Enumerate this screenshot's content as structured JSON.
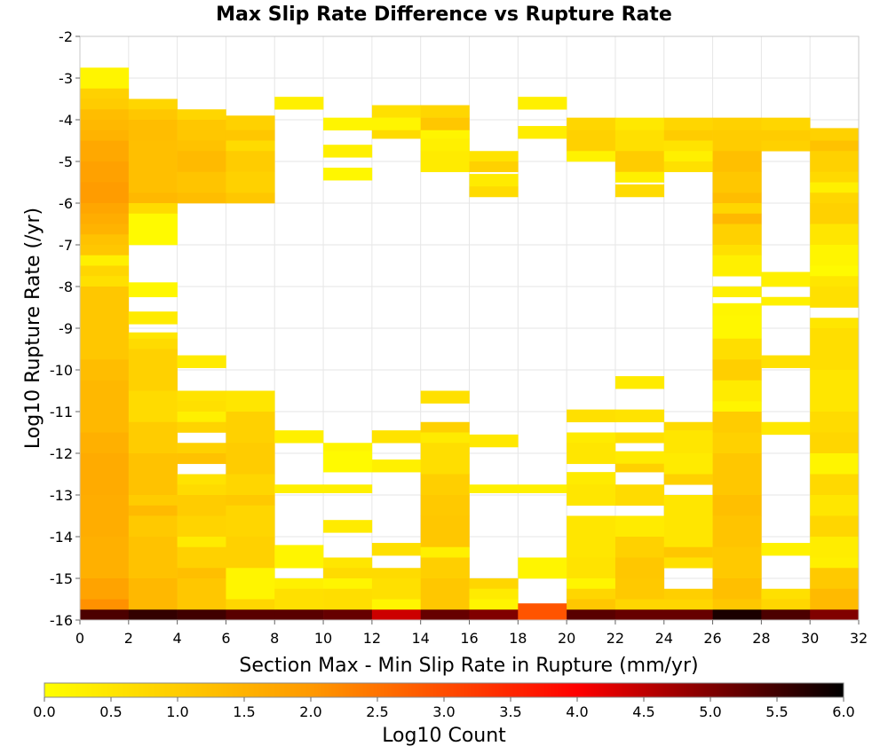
{
  "chart_data": {
    "type": "heatmap",
    "title": "Max Slip Rate Difference vs Rupture Rate",
    "xlabel": "Section Max - Min Slip Rate in Rupture (mm/yr)",
    "ylabel": "Log10 Rupture Rate (/yr)",
    "xlim": [
      0,
      32
    ],
    "ylim": [
      -16,
      -2
    ],
    "x_ticks": [
      "0",
      "2",
      "4",
      "6",
      "8",
      "10",
      "12",
      "14",
      "16",
      "18",
      "20",
      "22",
      "24",
      "26",
      "28",
      "30",
      "32"
    ],
    "y_ticks": [
      "-2",
      "-3",
      "-4",
      "-5",
      "-6",
      "-7",
      "-8",
      "-9",
      "-10",
      "-11",
      "-12",
      "-13",
      "-14",
      "-15",
      "-16"
    ],
    "grid": true,
    "x_bin_width": 2,
    "y_bin_height": 0.25,
    "colorbar": {
      "label": "Log10 Count",
      "range": [
        0,
        6
      ],
      "ticks": [
        "0.0",
        "0.5",
        "1.0",
        "1.5",
        "2.0",
        "2.5",
        "3.0",
        "3.5",
        "4.0",
        "4.5",
        "5.0",
        "5.5",
        "6.0"
      ],
      "colors": [
        "#ffff00",
        "#ff9900",
        "#ff0000",
        "#000000"
      ]
    },
    "cells": [
      [
        0,
        -3.25,
        -2.75,
        0.2
      ],
      [
        0,
        -3.5,
        -3.25,
        0.9
      ],
      [
        0,
        -3.75,
        -3.5,
        1.0
      ],
      [
        0,
        -4.0,
        -3.75,
        1.3
      ],
      [
        0,
        -4.25,
        -4.0,
        1.4
      ],
      [
        0,
        -4.5,
        -4.25,
        1.5
      ],
      [
        0,
        -5.0,
        -4.5,
        1.7
      ],
      [
        0,
        -5.5,
        -5.0,
        1.85
      ],
      [
        0,
        -6.0,
        -5.5,
        1.95
      ],
      [
        0,
        -6.25,
        -6.0,
        1.75
      ],
      [
        0,
        -6.5,
        -6.25,
        1.6
      ],
      [
        0,
        -6.75,
        -6.5,
        1.5
      ],
      [
        0,
        -7.0,
        -6.75,
        1.2
      ],
      [
        0,
        -7.25,
        -7.0,
        1.1
      ],
      [
        0,
        -7.5,
        -7.25,
        0.3
      ],
      [
        0,
        -7.75,
        -7.5,
        0.8
      ],
      [
        0,
        -8.0,
        -7.75,
        0.6
      ],
      [
        0,
        -9.75,
        -8.0,
        1.1
      ],
      [
        0,
        -10.25,
        -9.75,
        1.3
      ],
      [
        0,
        -11.5,
        -10.25,
        1.4
      ],
      [
        0,
        -12.0,
        -11.5,
        1.55
      ],
      [
        0,
        -13.0,
        -12.0,
        1.65
      ],
      [
        0,
        -14.0,
        -13.0,
        1.6
      ],
      [
        0,
        -15.0,
        -14.0,
        1.55
      ],
      [
        0,
        -15.5,
        -15.0,
        1.8
      ],
      [
        0,
        -15.75,
        -15.5,
        2.1
      ],
      [
        0,
        -16.0,
        -15.75,
        5.4
      ],
      [
        2,
        -3.75,
        -3.5,
        0.8
      ],
      [
        2,
        -4.0,
        -3.75,
        1.1
      ],
      [
        2,
        -4.5,
        -4.0,
        1.3
      ],
      [
        2,
        -5.75,
        -4.5,
        1.25
      ],
      [
        2,
        -6.0,
        -5.75,
        1.4
      ],
      [
        2,
        -6.25,
        -6.0,
        0.7
      ],
      [
        2,
        -7.0,
        -6.25,
        0.1
      ],
      [
        2,
        -8.25,
        -7.9,
        0.15
      ],
      [
        2,
        -8.9,
        -8.6,
        0.4
      ],
      [
        2,
        -9.25,
        -9.1,
        0.5
      ],
      [
        2,
        -9.5,
        -9.25,
        0.7
      ],
      [
        2,
        -10.5,
        -9.5,
        0.9
      ],
      [
        2,
        -11.25,
        -10.5,
        0.7
      ],
      [
        2,
        -12.0,
        -11.25,
        1.0
      ],
      [
        2,
        -13.0,
        -12.0,
        1.2
      ],
      [
        2,
        -13.25,
        -13.0,
        1.0
      ],
      [
        2,
        -13.5,
        -13.25,
        1.35
      ],
      [
        2,
        -14.0,
        -13.5,
        1.05
      ],
      [
        2,
        -15.0,
        -14.0,
        1.2
      ],
      [
        2,
        -15.75,
        -15.0,
        1.4
      ],
      [
        2,
        -16.0,
        -15.75,
        5.6
      ],
      [
        4,
        -4.0,
        -3.75,
        0.8
      ],
      [
        4,
        -4.5,
        -4.0,
        1.1
      ],
      [
        4,
        -4.75,
        -4.5,
        1.2
      ],
      [
        4,
        -5.25,
        -4.75,
        1.35
      ],
      [
        4,
        -5.75,
        -5.25,
        1.15
      ],
      [
        4,
        -6.0,
        -5.75,
        1.3
      ],
      [
        4,
        -9.95,
        -9.65,
        0.4
      ],
      [
        4,
        -10.75,
        -10.5,
        0.55
      ],
      [
        4,
        -11.0,
        -10.75,
        0.6
      ],
      [
        4,
        -11.25,
        -11.0,
        0.3
      ],
      [
        4,
        -11.5,
        -11.25,
        0.85
      ],
      [
        4,
        -12.0,
        -11.75,
        0.9
      ],
      [
        4,
        -12.25,
        -12.0,
        1.2
      ],
      [
        4,
        -12.75,
        -12.5,
        0.55
      ],
      [
        4,
        -13.0,
        -12.75,
        0.7
      ],
      [
        4,
        -13.5,
        -13.0,
        1.0
      ],
      [
        4,
        -14.0,
        -13.5,
        0.85
      ],
      [
        4,
        -14.25,
        -14.0,
        0.4
      ],
      [
        4,
        -14.75,
        -14.25,
        0.9
      ],
      [
        4,
        -15.0,
        -14.75,
        1.25
      ],
      [
        4,
        -15.75,
        -15.0,
        1.1
      ],
      [
        4,
        -16.0,
        -15.75,
        5.5
      ],
      [
        6,
        -4.25,
        -3.9,
        0.9
      ],
      [
        6,
        -4.5,
        -4.25,
        1.1
      ],
      [
        6,
        -4.75,
        -4.5,
        0.7
      ],
      [
        6,
        -5.25,
        -4.75,
        1.0
      ],
      [
        6,
        -5.75,
        -5.25,
        0.9
      ],
      [
        6,
        -6.0,
        -5.75,
        1.1
      ],
      [
        6,
        -11.0,
        -10.5,
        0.5
      ],
      [
        6,
        -11.75,
        -11.0,
        0.9
      ],
      [
        6,
        -12.5,
        -11.75,
        1.0
      ],
      [
        6,
        -13.0,
        -12.5,
        0.8
      ],
      [
        6,
        -13.25,
        -13.0,
        1.05
      ],
      [
        6,
        -14.0,
        -13.25,
        0.8
      ],
      [
        6,
        -14.75,
        -14.0,
        0.9
      ],
      [
        6,
        -15.5,
        -14.75,
        0.2
      ],
      [
        6,
        -15.75,
        -15.5,
        0.8
      ],
      [
        6,
        -16.0,
        -15.75,
        5.3
      ],
      [
        8,
        -3.75,
        -3.45,
        0.3
      ],
      [
        8,
        -11.75,
        -11.45,
        0.3
      ],
      [
        8,
        -12.95,
        -12.75,
        0.3
      ],
      [
        8,
        -14.75,
        -14.2,
        0.2
      ],
      [
        8,
        -15.25,
        -15.0,
        0.3
      ],
      [
        8,
        -15.75,
        -15.25,
        0.6
      ],
      [
        8,
        -16.0,
        -15.75,
        5.3
      ],
      [
        10,
        -4.25,
        -3.95,
        0.2
      ],
      [
        10,
        -4.9,
        -4.6,
        0.3
      ],
      [
        10,
        -5.45,
        -5.15,
        0.15
      ],
      [
        10,
        -11.95,
        -11.75,
        0.2
      ],
      [
        10,
        -12.45,
        -11.95,
        0.1
      ],
      [
        10,
        -12.95,
        -12.75,
        0.3
      ],
      [
        10,
        -13.9,
        -13.6,
        0.4
      ],
      [
        10,
        -14.75,
        -14.5,
        0.5
      ],
      [
        10,
        -15.0,
        -14.75,
        0.7
      ],
      [
        10,
        -15.25,
        -15.0,
        0.2
      ],
      [
        10,
        -15.75,
        -15.25,
        0.65
      ],
      [
        10,
        -16.0,
        -15.75,
        5.2
      ],
      [
        12,
        -3.95,
        -3.65,
        0.6
      ],
      [
        12,
        -4.25,
        -3.95,
        0.2
      ],
      [
        12,
        -4.45,
        -4.25,
        0.7
      ],
      [
        12,
        -11.75,
        -11.45,
        0.55
      ],
      [
        12,
        -12.45,
        -12.15,
        0.3
      ],
      [
        12,
        -14.45,
        -14.15,
        0.6
      ],
      [
        12,
        -15.0,
        -14.75,
        0.7
      ],
      [
        12,
        -15.5,
        -15.0,
        0.6
      ],
      [
        12,
        -15.75,
        -15.5,
        0.2
      ],
      [
        12,
        -16.0,
        -15.75,
        4.4
      ],
      [
        14,
        -3.95,
        -3.65,
        0.8
      ],
      [
        14,
        -4.25,
        -3.95,
        1.1
      ],
      [
        14,
        -4.45,
        -4.25,
        0.2
      ],
      [
        14,
        -4.75,
        -4.45,
        0.3
      ],
      [
        14,
        -5.25,
        -4.75,
        0.4
      ],
      [
        14,
        -10.8,
        -10.5,
        0.6
      ],
      [
        14,
        -11.5,
        -11.25,
        0.9
      ],
      [
        14,
        -11.75,
        -11.5,
        0.4
      ],
      [
        14,
        -12.5,
        -11.75,
        0.65
      ],
      [
        14,
        -13.0,
        -12.5,
        0.95
      ],
      [
        14,
        -13.5,
        -13.0,
        1.05
      ],
      [
        14,
        -14.25,
        -13.5,
        1.1
      ],
      [
        14,
        -14.5,
        -14.25,
        0.3
      ],
      [
        14,
        -15.0,
        -14.5,
        0.95
      ],
      [
        14,
        -15.75,
        -15.0,
        1.1
      ],
      [
        14,
        -16.0,
        -15.75,
        5.2
      ],
      [
        16,
        -5.0,
        -4.75,
        0.55
      ],
      [
        16,
        -5.25,
        -5.0,
        0.9
      ],
      [
        16,
        -5.6,
        -5.3,
        0.4
      ],
      [
        16,
        -5.85,
        -5.6,
        0.7
      ],
      [
        16,
        -11.85,
        -11.55,
        0.45
      ],
      [
        16,
        -12.95,
        -12.75,
        0.3
      ],
      [
        16,
        -15.25,
        -15.0,
        0.8
      ],
      [
        16,
        -15.5,
        -15.25,
        0.4
      ],
      [
        16,
        -15.75,
        -15.5,
        0.2
      ],
      [
        16,
        -16.0,
        -15.75,
        5.0
      ],
      [
        18,
        -3.75,
        -3.45,
        0.3
      ],
      [
        18,
        -4.45,
        -4.15,
        0.35
      ],
      [
        18,
        -12.95,
        -12.75,
        0.3
      ],
      [
        18,
        -15.0,
        -14.5,
        0.2
      ],
      [
        18,
        -16.0,
        -15.6,
        2.9
      ],
      [
        20,
        -4.25,
        -3.95,
        0.8
      ],
      [
        20,
        -4.75,
        -4.25,
        0.9
      ],
      [
        20,
        -5.0,
        -4.75,
        0.25
      ],
      [
        20,
        -11.25,
        -10.95,
        0.6
      ],
      [
        20,
        -11.75,
        -11.5,
        0.4
      ],
      [
        20,
        -12.25,
        -11.75,
        0.5
      ],
      [
        20,
        -12.75,
        -12.45,
        0.4
      ],
      [
        20,
        -13.25,
        -12.75,
        0.5
      ],
      [
        20,
        -14.5,
        -13.5,
        0.5
      ],
      [
        20,
        -15.0,
        -14.5,
        0.55
      ],
      [
        20,
        -15.25,
        -15.0,
        0.2
      ],
      [
        20,
        -15.5,
        -15.25,
        0.8
      ],
      [
        20,
        -15.75,
        -15.5,
        1.1
      ],
      [
        20,
        -16.0,
        -15.75,
        5.3
      ],
      [
        22,
        -4.25,
        -3.95,
        0.45
      ],
      [
        22,
        -4.75,
        -4.25,
        0.6
      ],
      [
        22,
        -5.25,
        -4.75,
        1.0
      ],
      [
        22,
        -5.5,
        -5.25,
        0.3
      ],
      [
        22,
        -5.85,
        -5.55,
        0.7
      ],
      [
        22,
        -10.45,
        -10.15,
        0.4
      ],
      [
        22,
        -11.25,
        -10.95,
        0.55
      ],
      [
        22,
        -11.75,
        -11.5,
        0.6
      ],
      [
        22,
        -12.25,
        -11.95,
        0.4
      ],
      [
        22,
        -12.45,
        -12.25,
        0.9
      ],
      [
        22,
        -13.25,
        -12.75,
        0.7
      ],
      [
        22,
        -14.0,
        -13.5,
        0.4
      ],
      [
        22,
        -14.5,
        -14.0,
        0.9
      ],
      [
        22,
        -15.0,
        -14.5,
        1.1
      ],
      [
        22,
        -15.5,
        -15.0,
        1.05
      ],
      [
        22,
        -15.75,
        -15.5,
        0.8
      ],
      [
        22,
        -16.0,
        -15.75,
        5.2
      ],
      [
        24,
        -4.25,
        -3.95,
        0.8
      ],
      [
        24,
        -4.5,
        -4.25,
        1.0
      ],
      [
        24,
        -4.75,
        -4.5,
        0.55
      ],
      [
        24,
        -5.0,
        -4.75,
        0.3
      ],
      [
        24,
        -5.25,
        -5.0,
        0.6
      ],
      [
        24,
        -11.45,
        -11.25,
        0.7
      ],
      [
        24,
        -12.0,
        -11.45,
        0.5
      ],
      [
        24,
        -12.5,
        -12.0,
        0.4
      ],
      [
        24,
        -12.75,
        -12.5,
        0.9
      ],
      [
        24,
        -14.25,
        -13.0,
        0.5
      ],
      [
        24,
        -14.5,
        -14.25,
        1.1
      ],
      [
        24,
        -14.75,
        -14.5,
        0.6
      ],
      [
        24,
        -15.5,
        -15.25,
        0.95
      ],
      [
        24,
        -15.75,
        -15.5,
        0.8
      ],
      [
        24,
        -16.0,
        -15.75,
        5.2
      ],
      [
        26,
        -4.25,
        -3.95,
        0.9
      ],
      [
        26,
        -4.75,
        -4.25,
        1.0
      ],
      [
        26,
        -5.25,
        -4.75,
        1.25
      ],
      [
        26,
        -5.75,
        -5.25,
        1.1
      ],
      [
        26,
        -6.0,
        -5.75,
        1.3
      ],
      [
        26,
        -6.25,
        -6.0,
        0.8
      ],
      [
        26,
        -6.5,
        -6.25,
        1.4
      ],
      [
        26,
        -7.0,
        -6.5,
        0.9
      ],
      [
        26,
        -7.25,
        -7.0,
        0.6
      ],
      [
        26,
        -7.75,
        -7.25,
        0.3
      ],
      [
        26,
        -8.25,
        -8.0,
        0.3
      ],
      [
        26,
        -8.7,
        -8.4,
        0.2
      ],
      [
        26,
        -9.25,
        -8.7,
        0.15
      ],
      [
        26,
        -9.75,
        -9.25,
        0.65
      ],
      [
        26,
        -10.25,
        -9.75,
        0.95
      ],
      [
        26,
        -10.75,
        -10.25,
        0.4
      ],
      [
        26,
        -11.0,
        -10.75,
        0.2
      ],
      [
        26,
        -11.5,
        -11.0,
        1.0
      ],
      [
        26,
        -12.0,
        -11.5,
        0.9
      ],
      [
        26,
        -13.0,
        -12.0,
        1.1
      ],
      [
        26,
        -13.5,
        -13.0,
        1.25
      ],
      [
        26,
        -14.25,
        -13.5,
        1.15
      ],
      [
        26,
        -15.0,
        -14.25,
        1.05
      ],
      [
        26,
        -15.5,
        -15.0,
        1.25
      ],
      [
        26,
        -15.75,
        -15.5,
        1.1
      ],
      [
        26,
        -16.0,
        -15.75,
        5.8
      ],
      [
        28,
        -4.25,
        -3.95,
        0.8
      ],
      [
        28,
        -4.5,
        -4.25,
        1.0
      ],
      [
        28,
        -4.75,
        -4.5,
        0.9
      ],
      [
        28,
        -8.0,
        -7.65,
        0.3
      ],
      [
        28,
        -8.45,
        -8.25,
        0.3
      ],
      [
        28,
        -9.95,
        -9.65,
        0.6
      ],
      [
        28,
        -11.55,
        -11.25,
        0.45
      ],
      [
        28,
        -14.45,
        -14.15,
        0.25
      ],
      [
        28,
        -15.5,
        -15.25,
        0.6
      ],
      [
        28,
        -15.75,
        -15.5,
        0.8
      ],
      [
        28,
        -16.0,
        -15.75,
        5.4
      ],
      [
        30,
        -4.5,
        -4.2,
        0.9
      ],
      [
        30,
        -4.75,
        -4.5,
        1.2
      ],
      [
        30,
        -5.25,
        -4.75,
        0.9
      ],
      [
        30,
        -5.5,
        -5.25,
        0.75
      ],
      [
        30,
        -5.75,
        -5.5,
        0.3
      ],
      [
        30,
        -6.0,
        -5.75,
        0.8
      ],
      [
        30,
        -6.5,
        -6.0,
        0.9
      ],
      [
        30,
        -7.0,
        -6.5,
        0.5
      ],
      [
        30,
        -7.5,
        -7.0,
        0.2
      ],
      [
        30,
        -7.75,
        -7.5,
        0.1
      ],
      [
        30,
        -8.0,
        -7.75,
        0.5
      ],
      [
        30,
        -8.5,
        -8.0,
        0.6
      ],
      [
        30,
        -9.0,
        -8.75,
        0.5
      ],
      [
        30,
        -10.0,
        -9.0,
        0.65
      ],
      [
        30,
        -11.0,
        -10.0,
        0.5
      ],
      [
        30,
        -11.5,
        -11.0,
        0.7
      ],
      [
        30,
        -12.0,
        -11.5,
        0.8
      ],
      [
        30,
        -12.5,
        -12.0,
        0.2
      ],
      [
        30,
        -13.0,
        -12.5,
        0.75
      ],
      [
        30,
        -13.5,
        -13.0,
        0.5
      ],
      [
        30,
        -14.0,
        -13.5,
        0.8
      ],
      [
        30,
        -14.5,
        -14.0,
        0.35
      ],
      [
        30,
        -14.75,
        -14.5,
        0.3
      ],
      [
        30,
        -15.25,
        -14.75,
        1.05
      ],
      [
        30,
        -15.75,
        -15.25,
        1.35
      ],
      [
        30,
        -16.0,
        -15.75,
        5.0
      ]
    ]
  }
}
